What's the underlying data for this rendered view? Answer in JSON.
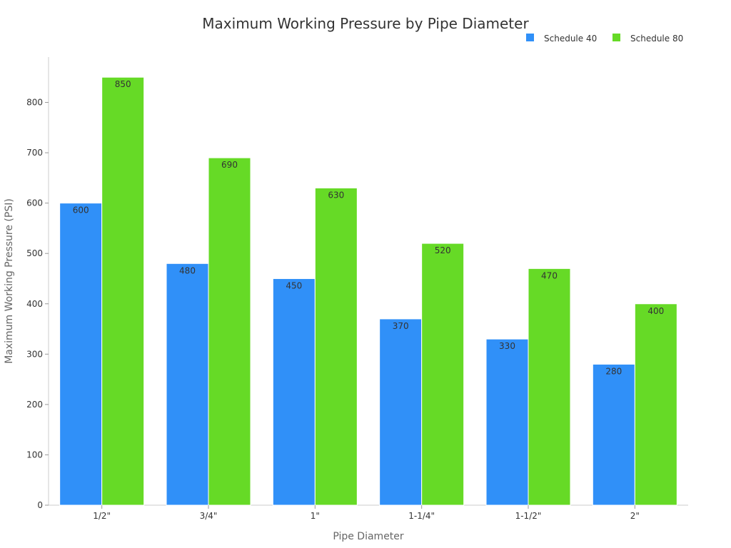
{
  "chart_data": {
    "type": "bar",
    "title": "Maximum Working Pressure by Pipe Diameter",
    "xlabel": "Pipe Diameter",
    "ylabel": "Maximum Working Pressure (PSI)",
    "categories": [
      "1/2\"",
      "3/4\"",
      "1\"",
      "1-1/4\"",
      "1-1/2\"",
      "2\""
    ],
    "series": [
      {
        "name": "Schedule 40",
        "color": "#3090f8",
        "values": [
          600,
          480,
          450,
          370,
          330,
          280
        ]
      },
      {
        "name": "Schedule 80",
        "color": "#66da26",
        "values": [
          850,
          690,
          630,
          520,
          470,
          400
        ]
      }
    ],
    "ylim": [
      0,
      890
    ],
    "yticks": [
      0,
      100,
      200,
      300,
      400,
      500,
      600,
      700,
      800
    ],
    "grid": false,
    "legend": "top-right"
  }
}
